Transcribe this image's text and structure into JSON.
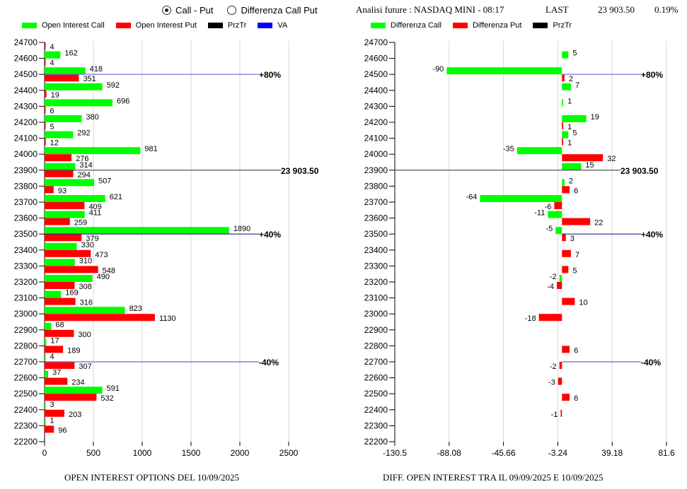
{
  "controls": {
    "radio_options": [
      {
        "label": "Call - Put",
        "checked": true
      },
      {
        "label": "Differenza Call Put",
        "checked": false
      }
    ]
  },
  "header": {
    "analysis_label": "Analisi future : NASDAQ MINI - 08:17",
    "last_label": "LAST",
    "last_value": "23 903.50",
    "change": "0.19%"
  },
  "colors": {
    "call": "#00ff00",
    "put": "#ff0000",
    "prztr": "#000000",
    "va": "#0000ff",
    "va_line": "#6666dd",
    "grid": "#d8d8d8"
  },
  "chart_data": [
    {
      "type": "bar",
      "orientation": "horizontal",
      "title": "OPEN INTEREST OPTIONS DEL 10/09/2025",
      "legend": [
        "Open Interest Call",
        "Open Interest Put",
        "PrzTr",
        "VA"
      ],
      "legend_position": "top",
      "xlim": [
        0,
        2500
      ],
      "xticks": [
        "0",
        "500",
        "1000",
        "1500",
        "2000",
        "2500"
      ],
      "grid": true,
      "categories": [
        "24700",
        "24600",
        "24500",
        "24400",
        "24300",
        "24200",
        "24100",
        "24000",
        "23900",
        "23800",
        "23700",
        "23600",
        "23500",
        "23400",
        "23300",
        "23200",
        "23100",
        "23000",
        "22900",
        "22800",
        "22700",
        "22600",
        "22500",
        "22400",
        "22300",
        "22200"
      ],
      "series": [
        {
          "name": "Open Interest Call",
          "values": [
            null,
            162,
            418,
            592,
            696,
            380,
            292,
            981,
            314,
            507,
            621,
            411,
            1890,
            330,
            310,
            490,
            169,
            823,
            68,
            17,
            4,
            37,
            591,
            3,
            1,
            null
          ]
        },
        {
          "name": "Open Interest Put",
          "values": [
            4,
            4,
            351,
            19,
            6,
            5,
            12,
            276,
            294,
            93,
            409,
            259,
            379,
            473,
            548,
            308,
            316,
            1130,
            300,
            189,
            307,
            234,
            532,
            203,
            96,
            null
          ]
        }
      ],
      "annotations": [
        {
          "strike": 24500,
          "label": "+80%",
          "kind": "va"
        },
        {
          "strike": 23900,
          "label": "23 903.50",
          "kind": "prztr"
        },
        {
          "strike": 23500,
          "label": "+40%",
          "kind": "va"
        },
        {
          "strike": 22700,
          "label": "-40%",
          "kind": "va"
        }
      ]
    },
    {
      "type": "bar",
      "orientation": "horizontal",
      "title": "DIFF. OPEN INTEREST TRA IL 09/09/2025 E 10/09/2025",
      "legend": [
        "Differenza Call",
        "Differenza Put",
        "PrzTr"
      ],
      "legend_position": "top",
      "xlim": [
        -130.5,
        81.6
      ],
      "xticks": [
        "-130.5",
        "-88.08",
        "-45.66",
        "-3.24",
        "39.18",
        "81.6"
      ],
      "grid": true,
      "categories": [
        "24700",
        "24600",
        "24500",
        "24400",
        "24300",
        "24200",
        "24100",
        "24000",
        "23900",
        "23800",
        "23700",
        "23600",
        "23500",
        "23400",
        "23300",
        "23200",
        "23100",
        "23000",
        "22900",
        "22800",
        "22700",
        "22600",
        "22500",
        "22400",
        "22300",
        "22200"
      ],
      "series": [
        {
          "name": "Differenza Call",
          "values": [
            null,
            5,
            -90,
            7,
            1,
            19,
            5,
            -35,
            15,
            2,
            -64,
            -11,
            -5,
            null,
            null,
            -2,
            null,
            null,
            null,
            null,
            null,
            null,
            null,
            null,
            null,
            null
          ]
        },
        {
          "name": "Differenza Put",
          "values": [
            null,
            null,
            2,
            null,
            null,
            1,
            1,
            32,
            null,
            6,
            -6,
            22,
            3,
            7,
            5,
            -4,
            10,
            -18,
            null,
            6,
            -2,
            -3,
            6,
            -1,
            null,
            null
          ]
        }
      ],
      "annotations": [
        {
          "strike": 24500,
          "label": "+80%",
          "kind": "va"
        },
        {
          "strike": 23900,
          "label": "23 903.50",
          "kind": "prztr"
        },
        {
          "strike": 23500,
          "label": "+40%",
          "kind": "va"
        },
        {
          "strike": 22700,
          "label": "-40%",
          "kind": "va"
        }
      ]
    }
  ]
}
